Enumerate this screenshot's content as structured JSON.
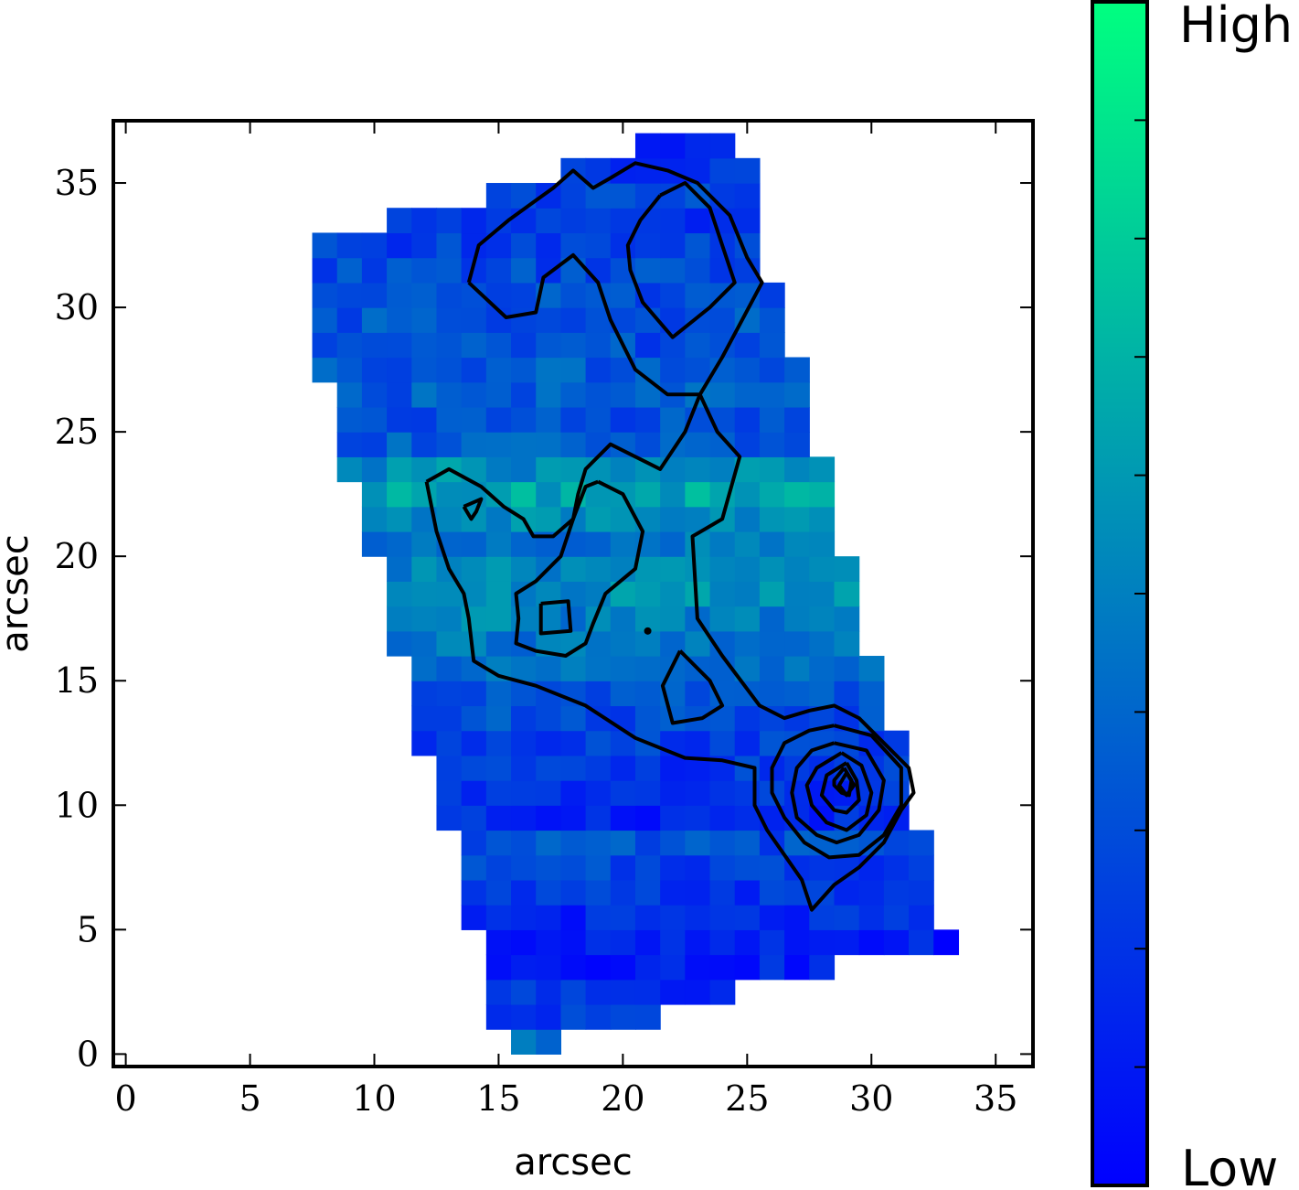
{
  "chart_data": {
    "type": "heatmap",
    "title": "",
    "xlabel": "arcsec",
    "ylabel": "arcsec",
    "xlim": [
      -0.5,
      36.5
    ],
    "ylim": [
      -0.5,
      37.5
    ],
    "xticks": [
      0,
      5,
      10,
      15,
      20,
      25,
      30,
      35
    ],
    "yticks": [
      0,
      5,
      10,
      15,
      20,
      25,
      30,
      35
    ],
    "xtick_labels": [
      "0",
      "5",
      "10",
      "15",
      "20",
      "25",
      "30",
      "35"
    ],
    "ytick_labels": [
      "0",
      "5",
      "10",
      "15",
      "20",
      "25",
      "30",
      "35"
    ],
    "grid": false,
    "colormap": "winter",
    "colorbar": {
      "high_label": "High",
      "low_label": "Low",
      "color_high": "#00ff80",
      "color_low": "#0000ff"
    },
    "pixel_rows": [
      {
        "y": 0.5,
        "cells": [
          {
            "x0": 16,
            "x1": 18,
            "v": 0.4
          }
        ]
      },
      {
        "y": 1.5,
        "cells": [
          {
            "x0": 15,
            "x1": 22,
            "v": 0.2
          }
        ]
      },
      {
        "y": 2.5,
        "cells": [
          {
            "x0": 15,
            "x1": 25,
            "v": 0.18
          }
        ]
      },
      {
        "y": 3.5,
        "cells": [
          {
            "x0": 15,
            "x1": 29,
            "v": 0.12
          }
        ]
      },
      {
        "y": 4.5,
        "cells": [
          {
            "x0": 15,
            "x1": 34,
            "v": 0.1
          }
        ]
      },
      {
        "y": 5.5,
        "cells": [
          {
            "x0": 14,
            "x1": 33,
            "v": 0.15
          }
        ]
      },
      {
        "y": 6.5,
        "cells": [
          {
            "x0": 14,
            "x1": 33,
            "v": 0.2
          }
        ]
      },
      {
        "y": 7.5,
        "cells": [
          {
            "x0": 14,
            "x1": 33,
            "v": 0.25
          }
        ]
      },
      {
        "y": 8.5,
        "cells": [
          {
            "x0": 14,
            "x1": 33,
            "v": 0.3
          }
        ]
      },
      {
        "y": 9.5,
        "cells": [
          {
            "x0": 13,
            "x1": 32,
            "v": 0.15
          }
        ]
      },
      {
        "y": 10.5,
        "cells": [
          {
            "x0": 13,
            "x1": 32,
            "v": 0.18
          }
        ]
      },
      {
        "y": 11.5,
        "cells": [
          {
            "x0": 13,
            "x1": 32,
            "v": 0.22
          }
        ]
      },
      {
        "y": 12.5,
        "cells": [
          {
            "x0": 12,
            "x1": 32,
            "v": 0.25
          }
        ]
      },
      {
        "y": 13.5,
        "cells": [
          {
            "x0": 12,
            "x1": 31,
            "v": 0.3
          }
        ]
      },
      {
        "y": 14.5,
        "cells": [
          {
            "x0": 12,
            "x1": 31,
            "v": 0.35
          }
        ]
      },
      {
        "y": 15.5,
        "cells": [
          {
            "x0": 12,
            "x1": 31,
            "v": 0.4
          }
        ]
      },
      {
        "y": 16.5,
        "cells": [
          {
            "x0": 11,
            "x1": 30,
            "v": 0.45
          }
        ]
      },
      {
        "y": 17.5,
        "cells": [
          {
            "x0": 11,
            "x1": 30,
            "v": 0.5
          }
        ]
      },
      {
        "y": 18.5,
        "cells": [
          {
            "x0": 11,
            "x1": 30,
            "v": 0.55
          }
        ]
      },
      {
        "y": 19.5,
        "cells": [
          {
            "x0": 11,
            "x1": 30,
            "v": 0.5
          }
        ]
      },
      {
        "y": 20.5,
        "cells": [
          {
            "x0": 10,
            "x1": 29,
            "v": 0.45
          }
        ]
      },
      {
        "y": 21.5,
        "cells": [
          {
            "x0": 10,
            "x1": 29,
            "v": 0.55
          }
        ]
      },
      {
        "y": 22.5,
        "cells": [
          {
            "x0": 10,
            "x1": 29,
            "v": 0.65
          }
        ]
      },
      {
        "y": 23.5,
        "cells": [
          {
            "x0": 9,
            "x1": 29,
            "v": 0.55
          }
        ]
      },
      {
        "y": 24.5,
        "cells": [
          {
            "x0": 9,
            "x1": 28,
            "v": 0.35
          }
        ]
      },
      {
        "y": 25.5,
        "cells": [
          {
            "x0": 9,
            "x1": 28,
            "v": 0.3
          }
        ]
      },
      {
        "y": 26.5,
        "cells": [
          {
            "x0": 9,
            "x1": 28,
            "v": 0.35
          }
        ]
      },
      {
        "y": 27.5,
        "cells": [
          {
            "x0": 8,
            "x1": 28,
            "v": 0.35
          }
        ]
      },
      {
        "y": 28.5,
        "cells": [
          {
            "x0": 8,
            "x1": 27,
            "v": 0.3
          }
        ]
      },
      {
        "y": 29.5,
        "cells": [
          {
            "x0": 8,
            "x1": 27,
            "v": 0.32
          }
        ]
      },
      {
        "y": 30.5,
        "cells": [
          {
            "x0": 8,
            "x1": 27,
            "v": 0.3
          }
        ]
      },
      {
        "y": 31.5,
        "cells": [
          {
            "x0": 8,
            "x1": 26,
            "v": 0.28
          }
        ]
      },
      {
        "y": 32.5,
        "cells": [
          {
            "x0": 8,
            "x1": 26,
            "v": 0.25
          }
        ]
      },
      {
        "y": 33.5,
        "cells": [
          {
            "x0": 11,
            "x1": 26,
            "v": 0.22
          }
        ]
      },
      {
        "y": 34.5,
        "cells": [
          {
            "x0": 15,
            "x1": 26,
            "v": 0.25
          }
        ]
      },
      {
        "y": 35.5,
        "cells": [
          {
            "x0": 18,
            "x1": 26,
            "v": 0.18
          }
        ]
      },
      {
        "y": 36.5,
        "cells": [
          {
            "x0": 21,
            "x1": 25,
            "v": 0.1
          }
        ]
      }
    ],
    "contours": [
      {
        "name": "north-outer",
        "points": [
          [
            13.8,
            31.0
          ],
          [
            14.2,
            32.5
          ],
          [
            15.4,
            33.5
          ],
          [
            16.5,
            34.3
          ],
          [
            17.2,
            34.8
          ],
          [
            18.0,
            35.5
          ],
          [
            18.8,
            34.8
          ],
          [
            19.5,
            35.2
          ],
          [
            20.5,
            35.8
          ],
          [
            21.8,
            35.5
          ],
          [
            23.0,
            35.0
          ],
          [
            24.3,
            33.7
          ],
          [
            25.0,
            32.0
          ],
          [
            25.6,
            31.0
          ],
          [
            24.8,
            29.5
          ],
          [
            24.0,
            28.0
          ],
          [
            23.1,
            26.5
          ],
          [
            21.8,
            26.5
          ],
          [
            20.5,
            27.5
          ],
          [
            19.5,
            29.5
          ],
          [
            19.0,
            31.0
          ],
          [
            18.0,
            32.1
          ],
          [
            16.8,
            31.2
          ],
          [
            16.5,
            29.8
          ],
          [
            15.3,
            29.6
          ],
          [
            13.8,
            31.0
          ]
        ]
      },
      {
        "name": "north-inner",
        "points": [
          [
            21.5,
            34.5
          ],
          [
            22.5,
            35.0
          ],
          [
            23.5,
            34.0
          ],
          [
            24.0,
            32.5
          ],
          [
            24.5,
            31.0
          ],
          [
            23.5,
            30.0
          ],
          [
            22.0,
            28.8
          ],
          [
            20.8,
            30.2
          ],
          [
            20.3,
            31.5
          ],
          [
            20.2,
            32.5
          ],
          [
            20.7,
            33.5
          ],
          [
            21.5,
            34.5
          ]
        ]
      },
      {
        "name": "central-outer",
        "points": [
          [
            12.1,
            23.0
          ],
          [
            13.0,
            23.5
          ],
          [
            14.3,
            22.8
          ],
          [
            15.2,
            22.0
          ],
          [
            16.0,
            21.5
          ],
          [
            16.4,
            20.8
          ],
          [
            17.2,
            20.8
          ],
          [
            18.0,
            21.5
          ],
          [
            18.2,
            22.5
          ],
          [
            18.5,
            23.5
          ],
          [
            19.5,
            24.5
          ],
          [
            20.5,
            24.0
          ],
          [
            21.5,
            23.5
          ],
          [
            22.5,
            25.0
          ],
          [
            23.1,
            26.5
          ],
          [
            23.8,
            25.0
          ],
          [
            24.7,
            24.0
          ],
          [
            24.0,
            21.5
          ],
          [
            22.8,
            20.8
          ],
          [
            23.0,
            17.5
          ],
          [
            24.0,
            16.0
          ],
          [
            25.5,
            14.0
          ],
          [
            26.5,
            13.5
          ],
          [
            27.5,
            13.8
          ],
          [
            28.5,
            14.0
          ],
          [
            29.5,
            13.5
          ],
          [
            30.5,
            12.5
          ],
          [
            31.5,
            11.5
          ],
          [
            31.7,
            10.5
          ],
          [
            31.2,
            9.8
          ],
          [
            30.5,
            8.5
          ],
          [
            29.5,
            7.5
          ],
          [
            28.5,
            6.8
          ],
          [
            27.6,
            5.8
          ],
          [
            27.2,
            7.0
          ],
          [
            26.5,
            8.0
          ],
          [
            25.8,
            9.0
          ],
          [
            25.3,
            10.0
          ],
          [
            25.3,
            11.5
          ],
          [
            24.0,
            11.8
          ],
          [
            22.5,
            11.9
          ],
          [
            20.5,
            12.7
          ],
          [
            18.5,
            14.0
          ],
          [
            16.5,
            14.8
          ],
          [
            15.0,
            15.2
          ],
          [
            14.0,
            15.8
          ],
          [
            13.8,
            17.5
          ],
          [
            13.6,
            18.5
          ],
          [
            13.0,
            19.5
          ],
          [
            12.5,
            21.0
          ],
          [
            12.1,
            23.0
          ]
        ]
      },
      {
        "name": "central-inner",
        "points": [
          [
            19.0,
            23.0
          ],
          [
            20.0,
            22.5
          ],
          [
            20.8,
            21.0
          ],
          [
            20.5,
            19.5
          ],
          [
            19.3,
            18.5
          ],
          [
            18.8,
            17.3
          ],
          [
            18.5,
            16.5
          ],
          [
            17.7,
            16.0
          ],
          [
            16.5,
            16.2
          ],
          [
            15.7,
            16.5
          ],
          [
            15.8,
            17.5
          ],
          [
            15.7,
            18.5
          ],
          [
            16.5,
            19.0
          ],
          [
            17.5,
            20.0
          ],
          [
            18.0,
            21.5
          ],
          [
            18.5,
            22.8
          ],
          [
            19.0,
            23.0
          ]
        ]
      },
      {
        "name": "blob-a",
        "points": [
          [
            16.7,
            18.1
          ],
          [
            17.8,
            18.2
          ],
          [
            17.9,
            17.0
          ],
          [
            16.7,
            16.9
          ],
          [
            16.7,
            18.1
          ]
        ]
      },
      {
        "name": "blob-b",
        "points": [
          [
            22.3,
            16.2
          ],
          [
            23.5,
            15.0
          ],
          [
            24.0,
            14.0
          ],
          [
            23.2,
            13.5
          ],
          [
            22.0,
            13.3
          ],
          [
            21.6,
            14.8
          ],
          [
            22.3,
            16.2
          ]
        ]
      },
      {
        "name": "blob-c",
        "points": [
          [
            13.6,
            22.0
          ],
          [
            14.3,
            22.3
          ],
          [
            14.1,
            21.8
          ],
          [
            13.9,
            21.5
          ],
          [
            13.6,
            22.0
          ]
        ]
      },
      {
        "name": "south-ring-1",
        "points": [
          [
            28.5,
            13.2
          ],
          [
            30.0,
            12.8
          ],
          [
            31.2,
            11.5
          ],
          [
            31.2,
            10.0
          ],
          [
            30.5,
            8.8
          ],
          [
            29.5,
            8.0
          ],
          [
            28.3,
            7.9
          ],
          [
            27.3,
            8.5
          ],
          [
            26.5,
            9.5
          ],
          [
            26.0,
            10.5
          ],
          [
            26.0,
            11.5
          ],
          [
            26.5,
            12.5
          ],
          [
            27.5,
            13.0
          ],
          [
            28.5,
            13.2
          ]
        ]
      },
      {
        "name": "south-ring-2",
        "points": [
          [
            28.5,
            12.5
          ],
          [
            29.8,
            12.2
          ],
          [
            30.5,
            11.0
          ],
          [
            30.3,
            9.8
          ],
          [
            29.5,
            8.8
          ],
          [
            28.6,
            8.5
          ],
          [
            27.8,
            8.8
          ],
          [
            27.0,
            9.5
          ],
          [
            26.8,
            10.5
          ],
          [
            27.0,
            11.5
          ],
          [
            27.6,
            12.2
          ],
          [
            28.5,
            12.5
          ]
        ]
      },
      {
        "name": "south-ring-3",
        "points": [
          [
            28.8,
            12.1
          ],
          [
            29.6,
            11.6
          ],
          [
            30.0,
            10.5
          ],
          [
            29.8,
            9.6
          ],
          [
            29.0,
            9.0
          ],
          [
            28.2,
            9.3
          ],
          [
            27.6,
            10.0
          ],
          [
            27.4,
            10.8
          ],
          [
            27.8,
            11.5
          ],
          [
            28.8,
            12.1
          ]
        ]
      },
      {
        "name": "south-ring-4",
        "points": [
          [
            29.0,
            11.7
          ],
          [
            29.4,
            11.0
          ],
          [
            29.5,
            10.2
          ],
          [
            29.0,
            9.7
          ],
          [
            28.5,
            9.8
          ],
          [
            28.0,
            10.4
          ],
          [
            28.2,
            11.2
          ],
          [
            29.0,
            11.7
          ]
        ]
      },
      {
        "name": "south-ring-5",
        "points": [
          [
            28.9,
            11.5
          ],
          [
            29.2,
            11.0
          ],
          [
            29.1,
            10.4
          ],
          [
            28.8,
            10.5
          ],
          [
            28.5,
            10.8
          ],
          [
            28.5,
            11.0
          ],
          [
            28.9,
            11.5
          ]
        ]
      },
      {
        "name": "south-ring-6",
        "points": [
          [
            29.0,
            11.3
          ],
          [
            29.3,
            10.8
          ],
          [
            29.0,
            10.4
          ],
          [
            28.7,
            10.8
          ],
          [
            29.0,
            11.3
          ]
        ]
      }
    ],
    "markers": [
      {
        "x": 21.0,
        "y": 17.0
      }
    ]
  }
}
